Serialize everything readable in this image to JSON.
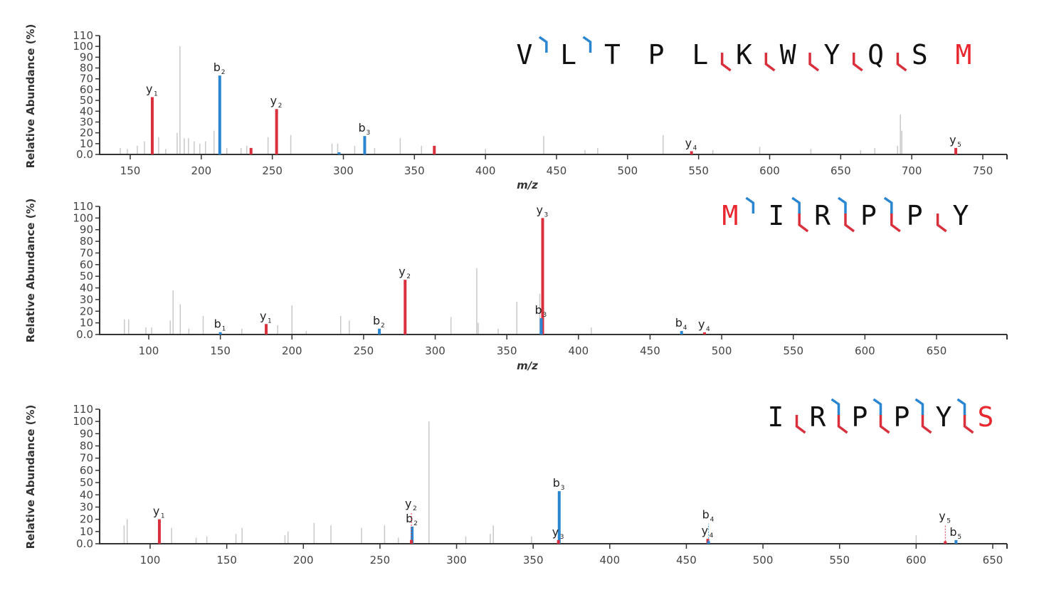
{
  "colors": {
    "y_ion": "#d9303e",
    "b_ion": "#2a86d0",
    "noise": "#c8c8c8",
    "axis": "#333333",
    "text": "#111111"
  },
  "chart_data": [
    {
      "type": "bar",
      "title": "",
      "xlabel": "m/z",
      "ylabel": "Relative Abundance (%)",
      "xlim": [
        130,
        768
      ],
      "ylim": [
        0,
        110
      ],
      "xticks": [
        150,
        200,
        250,
        300,
        350,
        400,
        450,
        500,
        550,
        600,
        650,
        700,
        750
      ],
      "yticks": [
        0,
        10,
        20,
        30,
        40,
        50,
        60,
        70,
        80,
        90,
        100,
        110
      ],
      "ytick_labels": [
        "0.0",
        "10",
        "20",
        "30",
        "40",
        "50",
        "60",
        "70",
        "80",
        "90",
        "100",
        "110"
      ],
      "sequence": {
        "residues": [
          "V",
          "L",
          "T",
          "P",
          "L",
          "K",
          "W",
          "Y",
          "Q",
          "S",
          "M"
        ],
        "modified": [
          10
        ],
        "b_breaks": [
          1,
          2
        ],
        "y_breaks": [
          5,
          6,
          7,
          8,
          9
        ]
      },
      "annotated": [
        {
          "mz": 165.5,
          "int": 53,
          "ion": "y",
          "n": "1"
        },
        {
          "mz": 213,
          "int": 73,
          "ion": "b",
          "n": "2"
        },
        {
          "mz": 235,
          "int": 6,
          "ion": "y",
          "n": ""
        },
        {
          "mz": 253,
          "int": 42,
          "ion": "y",
          "n": "2"
        },
        {
          "mz": 297,
          "int": 2,
          "ion": "b",
          "n": ""
        },
        {
          "mz": 315,
          "int": 17,
          "ion": "b",
          "n": "3"
        },
        {
          "mz": 364,
          "int": 8,
          "ion": "y",
          "n": ""
        },
        {
          "mz": 545,
          "int": 3,
          "ion": "y",
          "n": "4"
        },
        {
          "mz": 731,
          "int": 6,
          "ion": "y",
          "n": "5"
        }
      ],
      "noise": [
        [
          143,
          6
        ],
        [
          148,
          5
        ],
        [
          155,
          8
        ],
        [
          160,
          12
        ],
        [
          170,
          16
        ],
        [
          175,
          5
        ],
        [
          183,
          20
        ],
        [
          185,
          100
        ],
        [
          188,
          15
        ],
        [
          191,
          15
        ],
        [
          195,
          12
        ],
        [
          199,
          10
        ],
        [
          203,
          12
        ],
        [
          209,
          22
        ],
        [
          218,
          6
        ],
        [
          228,
          6
        ],
        [
          232,
          8
        ],
        [
          247,
          16
        ],
        [
          263,
          18
        ],
        [
          292,
          10
        ],
        [
          296,
          10
        ],
        [
          308,
          8
        ],
        [
          322,
          6
        ],
        [
          340,
          15
        ],
        [
          355,
          8
        ],
        [
          400,
          5
        ],
        [
          441,
          17
        ],
        [
          470,
          4
        ],
        [
          479,
          6
        ],
        [
          525,
          18
        ],
        [
          560,
          4
        ],
        [
          593,
          7
        ],
        [
          629,
          5
        ],
        [
          664,
          4
        ],
        [
          674,
          6
        ],
        [
          690,
          8
        ],
        [
          692,
          37
        ],
        [
          693,
          22
        ]
      ]
    },
    {
      "type": "bar",
      "title": "",
      "xlabel": "m/z",
      "ylabel": "Relative Abundance (%)",
      "xlim": [
        74,
        700
      ],
      "ylim": [
        0,
        110
      ],
      "xticks": [
        100,
        150,
        200,
        250,
        300,
        350,
        400,
        450,
        500,
        550,
        600,
        650
      ],
      "yticks": [
        0,
        10,
        20,
        30,
        40,
        50,
        60,
        70,
        80,
        90,
        100,
        110
      ],
      "ytick_labels": [
        "0.0",
        "10",
        "20",
        "30",
        "40",
        "50",
        "60",
        "70",
        "80",
        "90",
        "100",
        "110"
      ],
      "sequence": {
        "residues": [
          "M",
          "I",
          "R",
          "P",
          "P",
          "Y"
        ],
        "modified": [
          0
        ],
        "b_breaks": [
          1,
          2,
          3,
          4
        ],
        "y_breaks": [
          2,
          3,
          4,
          5
        ]
      },
      "annotated": [
        {
          "mz": 150,
          "int": 2,
          "ion": "b",
          "n": "1"
        },
        {
          "mz": 182,
          "int": 9,
          "ion": "y",
          "n": "1"
        },
        {
          "mz": 261,
          "int": 5,
          "ion": "b",
          "n": "2"
        },
        {
          "mz": 279,
          "int": 47,
          "ion": "y",
          "n": "2"
        },
        {
          "mz": 375,
          "int": 100,
          "ion": "y",
          "n": "3"
        },
        {
          "mz": 374,
          "int": 14,
          "ion": "b",
          "n": "3"
        },
        {
          "mz": 472,
          "int": 3,
          "ion": "b",
          "n": "4"
        },
        {
          "mz": 488,
          "int": 1,
          "ion": "y",
          "n": "4"
        }
      ],
      "noise": [
        [
          83,
          13
        ],
        [
          86,
          13
        ],
        [
          98,
          6
        ],
        [
          102,
          6
        ],
        [
          115,
          12
        ],
        [
          117,
          38
        ],
        [
          122,
          26
        ],
        [
          128,
          5
        ],
        [
          138,
          16
        ],
        [
          165,
          5
        ],
        [
          190,
          8
        ],
        [
          200,
          25
        ],
        [
          210,
          3
        ],
        [
          234,
          16
        ],
        [
          240,
          12
        ],
        [
          311,
          15
        ],
        [
          329,
          57
        ],
        [
          330,
          10
        ],
        [
          344,
          5
        ],
        [
          357,
          28
        ],
        [
          373,
          35
        ],
        [
          409,
          6
        ]
      ]
    },
    {
      "type": "bar",
      "title": "",
      "xlabel": "",
      "ylabel": "Relative Abundance (%)",
      "xlim": [
        68,
        660
      ],
      "ylim": [
        0,
        110
      ],
      "xticks": [
        100,
        150,
        200,
        250,
        300,
        350,
        400,
        450,
        500,
        550,
        600,
        650
      ],
      "yticks": [
        0,
        10,
        20,
        30,
        40,
        50,
        60,
        70,
        80,
        90,
        100,
        110
      ],
      "ytick_labels": [
        "0.0",
        "10",
        "20",
        "30",
        "40",
        "50",
        "60",
        "70",
        "80",
        "90",
        "100",
        "110"
      ],
      "sequence": {
        "residues": [
          "I",
          "R",
          "P",
          "P",
          "Y",
          "S"
        ],
        "modified": [
          5
        ],
        "b_breaks": [
          2,
          3,
          4,
          5
        ],
        "y_breaks": [
          1,
          2,
          3,
          4,
          5
        ]
      },
      "annotated": [
        {
          "mz": 106,
          "int": 20,
          "ion": "y",
          "n": "1"
        },
        {
          "mz": 271,
          "int": 14,
          "ion": "b",
          "n": "2"
        },
        {
          "mz": 270.5,
          "int": 3,
          "ion": "y",
          "n": "2"
        },
        {
          "mz": 367,
          "int": 43,
          "ion": "b",
          "n": "3"
        },
        {
          "mz": 366.5,
          "int": 3,
          "ion": "y",
          "n": "3"
        },
        {
          "mz": 464,
          "int": 4,
          "ion": "y",
          "n": "4"
        },
        {
          "mz": 464.5,
          "int": 2,
          "ion": "b",
          "n": "4"
        },
        {
          "mz": 619,
          "int": 2,
          "ion": "y",
          "n": "5"
        },
        {
          "mz": 626,
          "int": 3,
          "ion": "b",
          "n": "5"
        }
      ],
      "noise": [
        [
          83,
          15
        ],
        [
          85,
          20
        ],
        [
          114,
          13
        ],
        [
          130,
          5
        ],
        [
          137,
          6
        ],
        [
          156,
          8
        ],
        [
          160,
          13
        ],
        [
          188,
          7
        ],
        [
          190,
          10
        ],
        [
          207,
          17
        ],
        [
          218,
          15
        ],
        [
          238,
          13
        ],
        [
          253,
          15
        ],
        [
          262,
          5
        ],
        [
          282,
          100
        ],
        [
          306,
          6
        ],
        [
          322,
          8
        ],
        [
          324,
          15
        ],
        [
          349,
          6
        ],
        [
          600,
          7
        ]
      ]
    }
  ]
}
